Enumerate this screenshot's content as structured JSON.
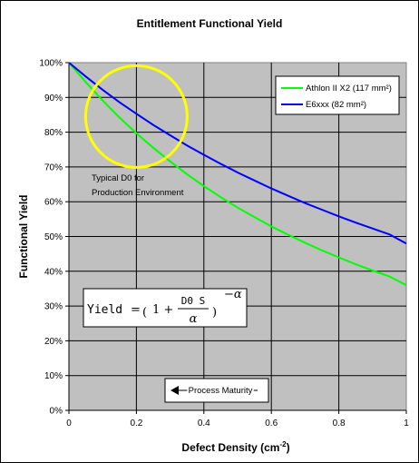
{
  "chart_data": {
    "type": "line",
    "title": "Entitlement Functional Yield",
    "xlabel": "Defect Density (cm",
    "xlabel_sup": "-2",
    "xlabel_close": ")",
    "ylabel": "Functional Yield",
    "xlim": [
      0,
      1
    ],
    "ylim": [
      0,
      1
    ],
    "x_ticks": [
      0,
      0.2,
      0.4,
      0.6,
      0.8,
      1
    ],
    "x_tick_labels": [
      "0",
      "0.2",
      "0.4",
      "0.6",
      "0.8",
      "1"
    ],
    "y_ticks": [
      0,
      0.1,
      0.2,
      0.3,
      0.4,
      0.5,
      0.6,
      0.7,
      0.8,
      0.9,
      1.0
    ],
    "y_tick_labels": [
      "0%",
      "10%",
      "20%",
      "30%",
      "40%",
      "50%",
      "60%",
      "70%",
      "80%",
      "90%",
      "100%"
    ],
    "grid": true,
    "legend_position": "top-right",
    "series": [
      {
        "name": "Athlon II X2 (117 mm²)",
        "color": "#00ff00",
        "x": [
          0,
          0.05,
          0.1,
          0.15,
          0.2,
          0.25,
          0.3,
          0.35,
          0.4,
          0.45,
          0.5,
          0.55,
          0.6,
          0.65,
          0.7,
          0.75,
          0.8,
          0.85,
          0.9,
          0.95,
          1.0
        ],
        "values": [
          1.0,
          0.944,
          0.891,
          0.842,
          0.797,
          0.755,
          0.716,
          0.679,
          0.645,
          0.613,
          0.583,
          0.556,
          0.529,
          0.505,
          0.482,
          0.46,
          0.44,
          0.42,
          0.402,
          0.385,
          0.36
        ]
      },
      {
        "name": "E6xxx (82 mm²)",
        "color": "#0000ff",
        "x": [
          0,
          0.05,
          0.1,
          0.15,
          0.2,
          0.25,
          0.3,
          0.35,
          0.4,
          0.45,
          0.5,
          0.55,
          0.6,
          0.65,
          0.7,
          0.75,
          0.8,
          0.85,
          0.9,
          0.95,
          1.0
        ],
        "values": [
          1.0,
          0.96,
          0.922,
          0.886,
          0.853,
          0.821,
          0.791,
          0.762,
          0.735,
          0.709,
          0.684,
          0.661,
          0.638,
          0.617,
          0.596,
          0.577,
          0.558,
          0.54,
          0.523,
          0.506,
          0.48
        ]
      }
    ],
    "annotations": {
      "circle_label_line1": "Typical D0 for",
      "circle_label_line2": "Production Environment",
      "circle_center": [
        0.2,
        0.845
      ],
      "circle_color": "#ffff00",
      "arrow_label": "Process Maturity"
    },
    "formula": {
      "lhs": "Yield",
      "equals": "=",
      "one_plus": "1 +",
      "numerator": "D0 S",
      "denominator": "α",
      "exponent": "−α"
    }
  }
}
